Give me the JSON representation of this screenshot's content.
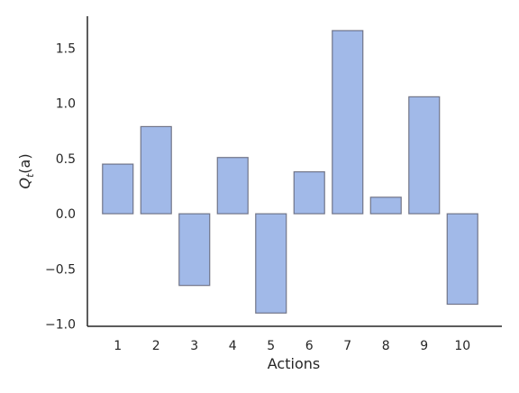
{
  "chart_data": {
    "type": "bar",
    "title": "",
    "xlabel": "Actions",
    "ylabel_base": "Q",
    "ylabel_sub": "t",
    "ylabel_arg": "(a)",
    "categories": [
      "1",
      "2",
      "3",
      "4",
      "5",
      "6",
      "7",
      "8",
      "9",
      "10"
    ],
    "values": [
      0.45,
      0.79,
      -0.65,
      0.51,
      -0.9,
      0.38,
      1.66,
      0.15,
      1.06,
      -0.82
    ],
    "ylim": [
      -1.02,
      1.79
    ],
    "yticks": [
      -1.0,
      -0.5,
      0.0,
      0.5,
      1.0,
      1.5
    ],
    "ytick_labels": [
      "−1.0",
      "−0.5",
      "0.0",
      "0.5",
      "1.0",
      "1.5"
    ],
    "grid": false,
    "colors": {
      "bar_fill": "#a1b9e8",
      "bar_edge": "#4c4c5c",
      "spine": "#262626"
    }
  }
}
